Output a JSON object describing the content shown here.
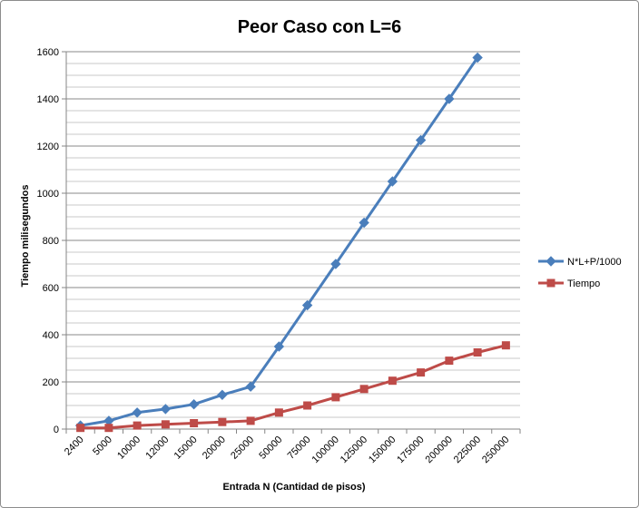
{
  "chart_data": {
    "type": "line",
    "title": "Peor Caso con L=6",
    "xlabel": "Entrada N (Cantidad de pisos)",
    "ylabel": "Tiempo milisegundos",
    "categories": [
      "2400",
      "5000",
      "10000",
      "12000",
      "15000",
      "20000",
      "25000",
      "50000",
      "75000",
      "100000",
      "125000",
      "150000",
      "175000",
      "200000",
      "225000",
      "250000"
    ],
    "ylim": [
      0,
      1600
    ],
    "yticks": [
      0,
      200,
      400,
      600,
      800,
      1000,
      1200,
      1400,
      1600
    ],
    "grid": true,
    "legend_position": "right",
    "series": [
      {
        "name": "N*L+P/1000",
        "color": "#4a7ebb",
        "marker": "diamond",
        "values": [
          15,
          35,
          70,
          85,
          105,
          145,
          180,
          350,
          525,
          700,
          875,
          1050,
          1225,
          1400,
          1575,
          null
        ]
      },
      {
        "name": "Tiempo",
        "color": "#be4b48",
        "marker": "square",
        "values": [
          5,
          5,
          15,
          20,
          25,
          30,
          35,
          70,
          100,
          135,
          170,
          205,
          240,
          290,
          325,
          355
        ]
      }
    ]
  }
}
